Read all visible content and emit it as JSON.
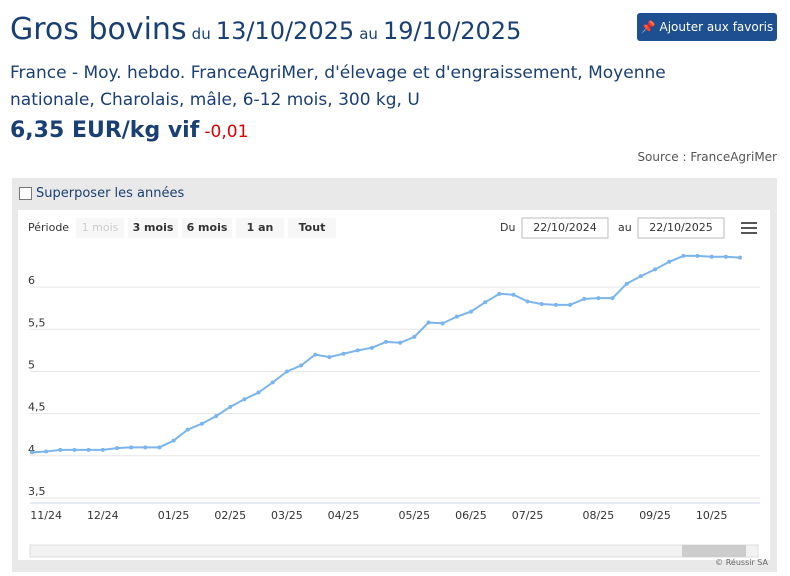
{
  "header": {
    "title": "Gros bovins",
    "from_word": "du",
    "from_date": "13/10/2025",
    "to_word": "au",
    "to_date": "19/10/2025",
    "button": "Ajouter aux favoris",
    "description": "France - Moy. hebdo. FranceAgriMer, d'élevage et d'engraissement, Moyenne nationale, Charolais, mâle, 6-12 mois, 300 kg, U",
    "price": "6,35 EUR/kg vif",
    "change": "-0,01",
    "source": "Source : FranceAgriMer"
  },
  "controls": {
    "overlay": "Superposer les années",
    "period": "Période",
    "ranges": [
      "1 mois",
      "3 mois",
      "6 mois",
      "1 an",
      "Tout"
    ],
    "from_label": "Du",
    "from_value": "22/10/2024",
    "to_label": "au",
    "to_value": "22/10/2025"
  },
  "credit": "© Réussir SA",
  "chart_data": {
    "type": "line",
    "color": "#7cb5ec",
    "grid": true,
    "categories": [
      null,
      "11/24",
      null,
      null,
      null,
      "12/24",
      null,
      null,
      null,
      null,
      "01/25",
      null,
      null,
      null,
      "02/25",
      null,
      null,
      null,
      "03/25",
      null,
      null,
      null,
      "04/25",
      null,
      null,
      null,
      null,
      "05/25",
      null,
      null,
      null,
      "06/25",
      null,
      null,
      null,
      "07/25",
      null,
      null,
      null,
      null,
      "08/25",
      null,
      null,
      null,
      "09/25",
      null,
      null,
      null,
      "10/25",
      null,
      null
    ],
    "values": [
      4.04,
      4.05,
      4.07,
      4.07,
      4.07,
      4.07,
      4.09,
      4.1,
      4.1,
      4.1,
      4.18,
      4.31,
      4.38,
      4.47,
      4.58,
      4.67,
      4.75,
      4.87,
      5.0,
      5.07,
      5.2,
      5.17,
      5.21,
      5.25,
      5.28,
      5.35,
      5.34,
      5.41,
      5.58,
      5.57,
      5.65,
      5.71,
      5.82,
      5.92,
      5.91,
      5.83,
      5.8,
      5.79,
      5.79,
      5.86,
      5.87,
      5.87,
      6.04,
      6.13,
      6.21,
      6.3,
      6.37,
      6.37,
      6.36,
      6.36,
      6.35
    ],
    "ylim": [
      3.44,
      6.44
    ],
    "yticks": [
      {
        "value": 3.5,
        "label": "3,5"
      },
      4,
      {
        "value": 4.5,
        "label": "4,5"
      },
      5,
      {
        "value": 5.5,
        "label": "5,5"
      },
      6
    ]
  }
}
